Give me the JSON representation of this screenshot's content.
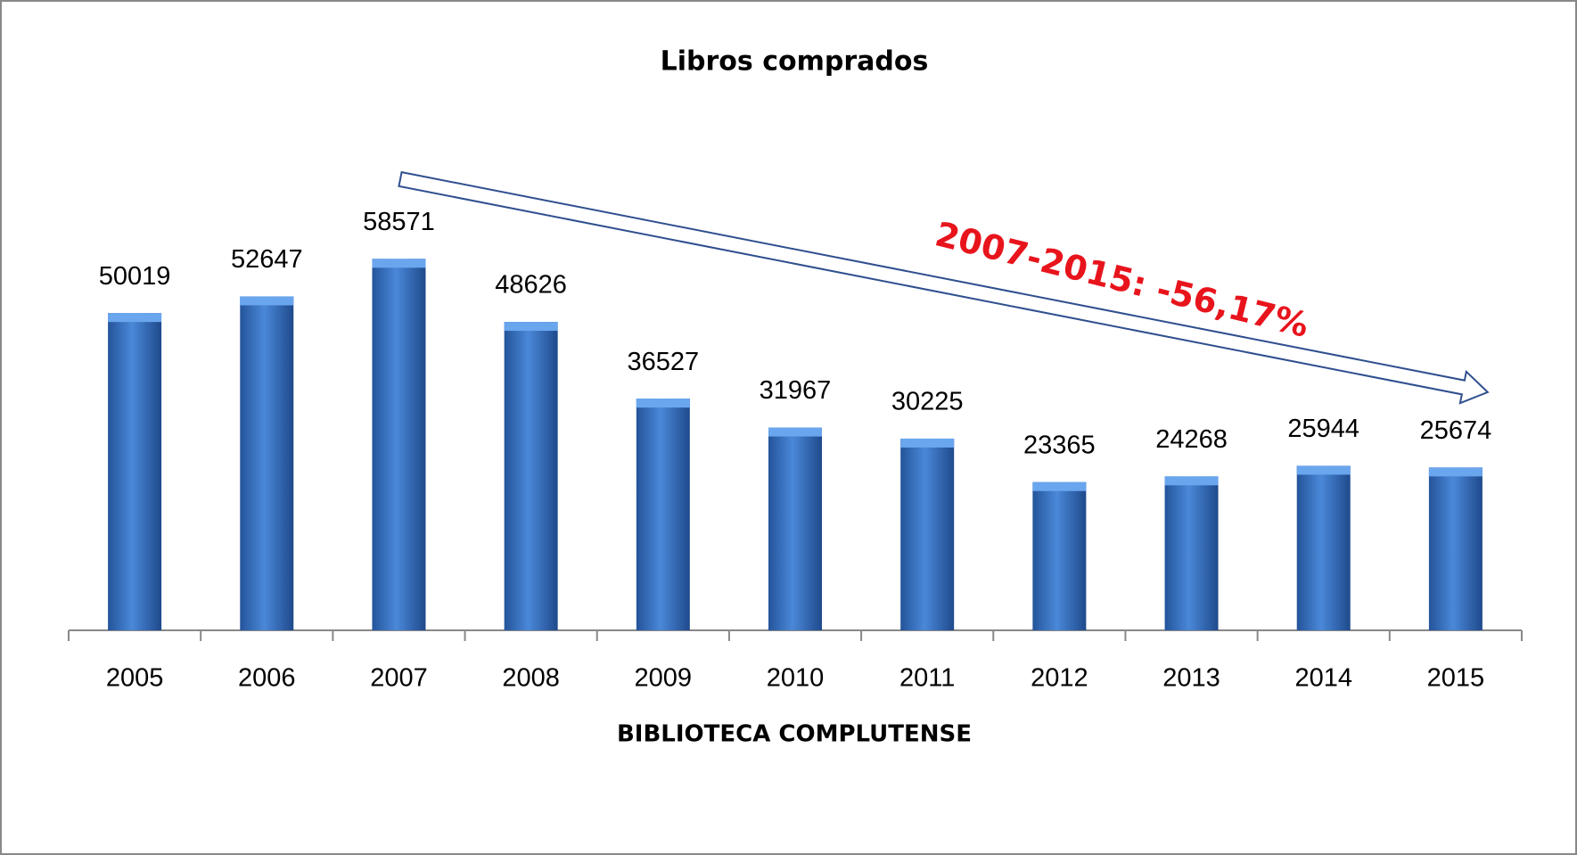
{
  "chart_data": {
    "type": "bar",
    "title": "Libros comprados",
    "x_label": "BIBLIOTECA COMPLUTENSE",
    "annotation": "2007-2015: -56,17%",
    "categories": [
      "2005",
      "2006",
      "2007",
      "2008",
      "2009",
      "2010",
      "2011",
      "2012",
      "2013",
      "2014",
      "2015"
    ],
    "values": [
      50019,
      52647,
      58571,
      48626,
      36527,
      31967,
      30225,
      23365,
      24268,
      25944,
      25674
    ],
    "color": "#3a78c8",
    "ylim": [
      0,
      70000
    ]
  }
}
